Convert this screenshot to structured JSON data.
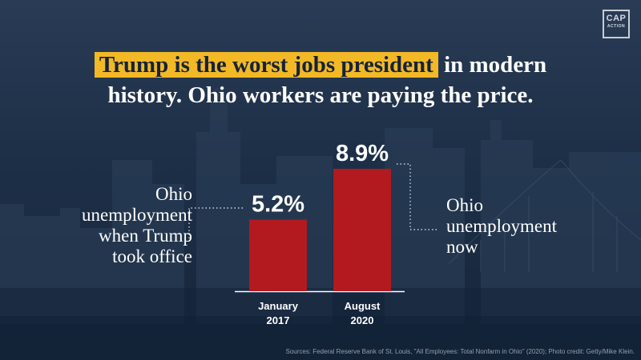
{
  "logo": {
    "line1": "CAP",
    "line2": "ACTION"
  },
  "headline": {
    "highlight": "Trump is the worst jobs president",
    "rest": "in modern",
    "line2": "history. Ohio workers are paying the price."
  },
  "annotations": {
    "left": [
      "Ohio",
      "unemployment",
      "when Trump",
      "took office"
    ],
    "right": [
      "Ohio",
      "unemployment",
      "now"
    ]
  },
  "source": "Sources: Federal Reserve Bank of St. Louis, \"All Employees: Total Nonfarm in Ohio\" (2020); Photo credit: Getty/Mike Klein.",
  "colors": {
    "bar": "#b21a1f",
    "highlight": "#f2b826",
    "background": "#1d2f47"
  },
  "chart_data": {
    "type": "bar",
    "categories": [
      [
        "January",
        "2017"
      ],
      [
        "August",
        "2020"
      ]
    ],
    "values": [
      5.2,
      8.9
    ],
    "value_labels": [
      "5.2%",
      "8.9%"
    ],
    "title": "",
    "xlabel": "",
    "ylabel": "",
    "ylim": [
      0,
      8.9
    ],
    "grid": false,
    "legend": "none"
  }
}
